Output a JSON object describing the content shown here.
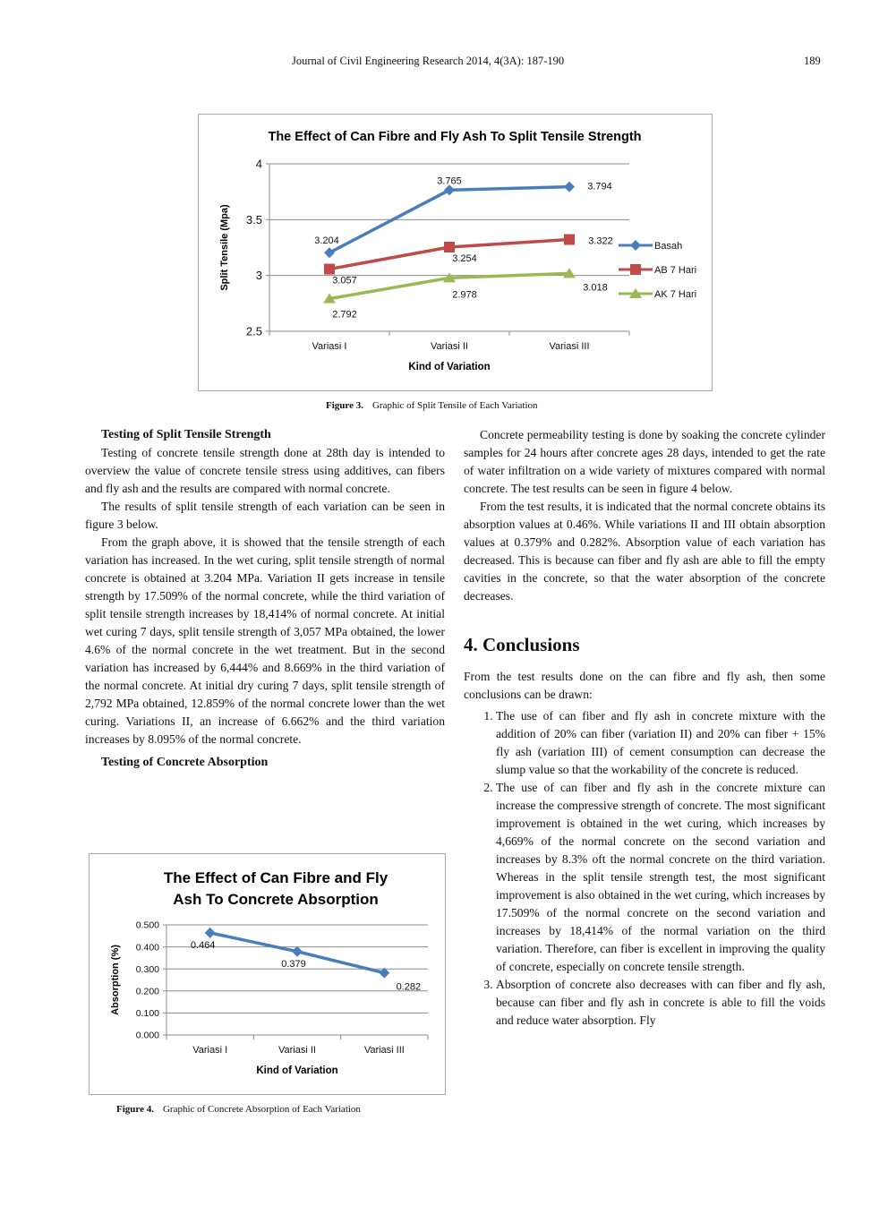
{
  "header": {
    "running_head": "Journal of Civil Engineering Research 2014, 4(3A): 187-190",
    "page_number": "189"
  },
  "figure3": {
    "caption_label": "Figure 3.",
    "caption_text": "Graphic of Split Tensile of Each Variation"
  },
  "figure4": {
    "caption_label": "Figure 4.",
    "caption_text": "Graphic of Concrete Absorption of Each Variation"
  },
  "chart_data": [
    {
      "type": "line",
      "title": "The Effect of Can Fibre and Fly Ash To Split Tensile Strength",
      "xlabel": "Kind of Variation",
      "ylabel": "Split Tensile (Mpa)",
      "categories": [
        "Variasi I",
        "Variasi II",
        "Variasi III"
      ],
      "ylim": [
        2.5,
        4
      ],
      "yticks": [
        "2.5",
        "3",
        "3.5",
        "4"
      ],
      "grid": true,
      "legend_position": "right",
      "series": [
        {
          "name": "Basah",
          "values": [
            3.204,
            3.765,
            3.794
          ],
          "labels": [
            "3.204",
            "3.765",
            "3.794"
          ],
          "color": "#4a7ebb",
          "marker": "diamond"
        },
        {
          "name": "AB 7 Hari",
          "values": [
            3.057,
            3.254,
            3.322
          ],
          "labels": [
            "3.057",
            "3.254",
            "3.322"
          ],
          "color": "#be4b48",
          "marker": "square"
        },
        {
          "name": "AK 7 Hari",
          "values": [
            2.792,
            2.978,
            3.018
          ],
          "labels": [
            "2.792",
            "2.978",
            "3.018"
          ],
          "color": "#98b954",
          "marker": "triangle"
        }
      ]
    },
    {
      "type": "line",
      "title": "The Effect of Can Fibre and Fly Ash To Concrete Absorption",
      "title_lines": [
        "The Effect of Can Fibre and Fly",
        "Ash To Concrete Absorption"
      ],
      "xlabel": "Kind of Variation",
      "ylabel": "Absorption (%)",
      "categories": [
        "Variasi I",
        "Variasi II",
        "Variasi III"
      ],
      "ylim": [
        0,
        0.5
      ],
      "yticks": [
        "0.000",
        "0.100",
        "0.200",
        "0.300",
        "0.400",
        "0.500"
      ],
      "grid": true,
      "legend_position": "none",
      "series": [
        {
          "name": "Absorption",
          "values": [
            0.464,
            0.379,
            0.282
          ],
          "labels": [
            "0.464",
            "0.379",
            "0.282"
          ],
          "color": "#4a7ebb",
          "marker": "diamond"
        }
      ]
    }
  ],
  "left_column": {
    "section1_heading": "Testing of Split Tensile Strength",
    "section1_paragraphs": [
      "Testing of concrete tensile strength done at 28th day is intended to overview the value of concrete tensile stress using additives, can fibers and fly ash and the results are compared with normal concrete.",
      "The results of split tensile strength of each variation can be seen in figure 3 below.",
      "From the graph above, it is showed that the tensile strength of each variation has increased. In the wet curing, split tensile strength of normal concrete is obtained at 3.204 MPa. Variation II gets increase in tensile strength by 17.509% of the normal concrete, while the third variation of split tensile strength increases by 18,414% of normal concrete. At initial wet curing 7 days, split tensile strength of 3,057 MPa obtained, the lower 4.6% of the normal concrete in the wet treatment. But in the second variation has increased by 6,444% and 8.669% in the third variation of the normal concrete. At initial dry curing 7 days, split tensile strength of 2,792 MPa obtained, 12.859% of the normal concrete lower than the wet curing. Variations II, an increase of 6.662% and the third variation increases by 8.095% of the normal concrete."
    ],
    "section2_heading": "Testing of Concrete Absorption"
  },
  "right_column": {
    "paragraphs": [
      "Concrete permeability testing is done by soaking the concrete cylinder samples for 24 hours after concrete ages 28 days, intended to get the rate of water infiltration on a wide variety of mixtures compared with normal concrete. The test results can be seen in figure 4 below.",
      "From the test results, it is indicated that the normal concrete obtains its absorption values at 0.46%. While variations II and III obtain absorption values at 0.379% and 0.282%. Absorption value of each variation has decreased. This is because can fiber and fly ash are able to fill the empty cavities in the concrete, so that the water absorption of the concrete decreases."
    ],
    "conclusions_heading": "4. Conclusions",
    "conclusions_intro": "From the test results done on the can fibre and fly ash, then some conclusions can be drawn:",
    "conclusions_items": [
      "The use of can fiber and fly ash in concrete mixture with the addition of 20% can fiber (variation II) and 20% can fiber + 15% fly ash (variation III) of cement consumption can decrease the slump value so that the workability of the concrete is reduced.",
      "The use of can fiber and fly ash in the concrete mixture can increase the compressive strength of concrete. The most significant improvement is obtained in the wet curing, which increases by 4,669% of the normal concrete on the second variation and increases by 8.3% oft the normal concrete on the third variation. Whereas in the split tensile strength test, the most significant improvement is also obtained in the wet curing, which increases by 17.509% of the normal concrete on the second variation and increases by 18,414% of the normal variation on the third variation. Therefore, can fiber is excellent in improving the quality of concrete, especially on concrete tensile strength.",
      "Absorption of concrete also decreases with can fiber and fly ash, because can fiber and fly ash in concrete is able to fill the voids and reduce water absorption. Fly"
    ]
  }
}
